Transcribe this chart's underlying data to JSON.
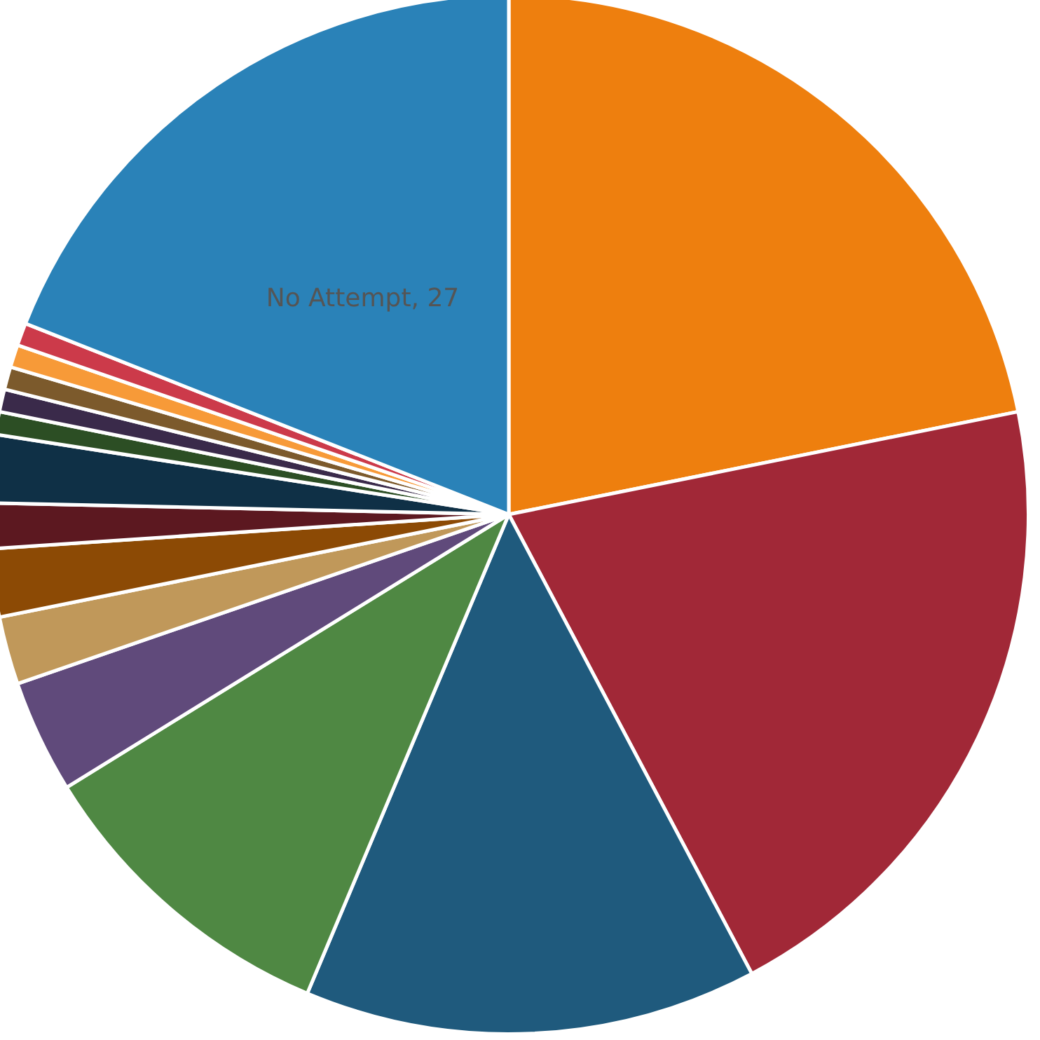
{
  "chart_data": {
    "type": "pie",
    "categories": [
      null,
      null,
      null,
      null,
      null,
      null,
      null,
      null,
      null,
      null,
      null,
      null,
      null,
      null,
      "No Attempt"
    ],
    "values": [
      31,
      29,
      20,
      14,
      5,
      3,
      3,
      2,
      3,
      1,
      1,
      1,
      1,
      1,
      27
    ],
    "value_labels": [
      null,
      null,
      null,
      null,
      null,
      null,
      null,
      null,
      null,
      null,
      null,
      null,
      null,
      null,
      "27"
    ],
    "colors": [
      "#ee7f0e",
      "#a12837",
      "#1f5a7d",
      "#4f8843",
      "#604a7b",
      "#c0985a",
      "#8c4a05",
      "#5c1820",
      "#0f3046",
      "#2c4e24",
      "#3a2a4a",
      "#7c5a2c",
      "#f79a38",
      "#cc3a4a",
      "#2a82b8"
    ],
    "legend": false
  }
}
